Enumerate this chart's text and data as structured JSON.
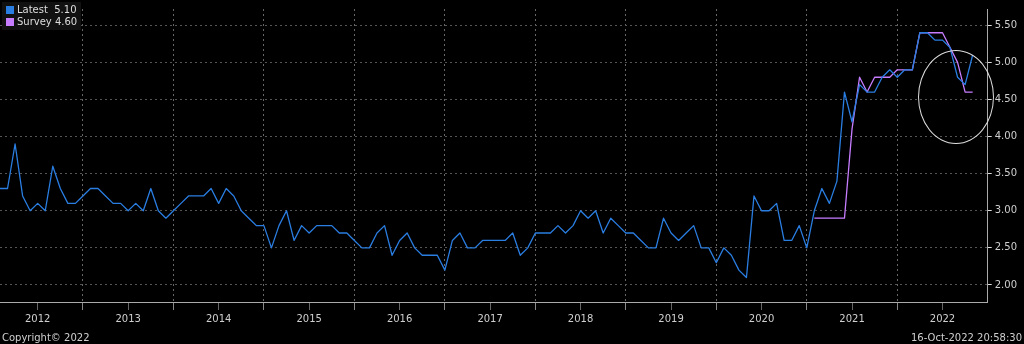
{
  "chart_data": {
    "type": "line",
    "x": [
      "2012-02",
      "2012-03",
      "2012-04",
      "2012-05",
      "2012-06",
      "2012-07",
      "2012-08",
      "2012-09",
      "2012-10",
      "2012-11",
      "2012-12",
      "2013-01",
      "2013-02",
      "2013-03",
      "2013-04",
      "2013-05",
      "2013-06",
      "2013-07",
      "2013-08",
      "2013-09",
      "2013-10",
      "2013-11",
      "2013-12",
      "2014-01",
      "2014-02",
      "2014-03",
      "2014-04",
      "2014-05",
      "2014-06",
      "2014-07",
      "2014-08",
      "2014-09",
      "2014-10",
      "2014-11",
      "2014-12",
      "2015-01",
      "2015-02",
      "2015-03",
      "2015-04",
      "2015-05",
      "2015-06",
      "2015-07",
      "2015-08",
      "2015-09",
      "2015-10",
      "2015-11",
      "2015-12",
      "2016-01",
      "2016-02",
      "2016-03",
      "2016-04",
      "2016-05",
      "2016-06",
      "2016-07",
      "2016-08",
      "2016-09",
      "2016-10",
      "2016-11",
      "2016-12",
      "2017-01",
      "2017-02",
      "2017-03",
      "2017-04",
      "2017-05",
      "2017-06",
      "2017-07",
      "2017-08",
      "2017-09",
      "2017-10",
      "2017-11",
      "2017-12",
      "2018-01",
      "2018-02",
      "2018-03",
      "2018-04",
      "2018-05",
      "2018-06",
      "2018-07",
      "2018-08",
      "2018-09",
      "2018-10",
      "2018-11",
      "2018-12",
      "2019-01",
      "2019-02",
      "2019-03",
      "2019-04",
      "2019-05",
      "2019-06",
      "2019-07",
      "2019-08",
      "2019-09",
      "2019-10",
      "2019-11",
      "2019-12",
      "2020-01",
      "2020-02",
      "2020-03",
      "2020-04",
      "2020-05",
      "2020-06",
      "2020-07",
      "2020-08",
      "2020-09",
      "2020-10",
      "2020-11",
      "2020-12",
      "2021-01",
      "2021-02",
      "2021-03",
      "2021-04",
      "2021-05",
      "2021-06",
      "2021-07",
      "2021-08",
      "2021-09",
      "2021-10",
      "2021-11",
      "2021-12",
      "2022-01",
      "2022-02",
      "2022-03",
      "2022-04",
      "2022-05",
      "2022-06",
      "2022-07",
      "2022-08",
      "2022-09",
      "2022-10",
      "2022-11"
    ],
    "series": [
      {
        "name": "Latest  5.10",
        "color": "#2a7de1",
        "values": [
          3.3,
          3.3,
          3.9,
          3.2,
          3.0,
          3.1,
          3.0,
          3.6,
          3.3,
          3.1,
          3.1,
          3.2,
          3.3,
          3.3,
          3.2,
          3.1,
          3.1,
          3.0,
          3.1,
          3.0,
          3.3,
          3.0,
          2.9,
          3.0,
          3.1,
          3.2,
          3.2,
          3.2,
          3.3,
          3.1,
          3.3,
          3.2,
          3.0,
          2.9,
          2.8,
          2.8,
          2.5,
          2.8,
          3.0,
          2.6,
          2.8,
          2.7,
          2.8,
          2.8,
          2.8,
          2.7,
          2.7,
          2.6,
          2.5,
          2.5,
          2.7,
          2.8,
          2.4,
          2.6,
          2.7,
          2.5,
          2.4,
          2.4,
          2.4,
          2.2,
          2.6,
          2.7,
          2.5,
          2.5,
          2.6,
          2.6,
          2.6,
          2.6,
          2.7,
          2.4,
          2.5,
          2.7,
          2.7,
          2.7,
          2.8,
          2.7,
          2.8,
          3.0,
          2.9,
          3.0,
          2.7,
          2.9,
          2.8,
          2.7,
          2.7,
          2.6,
          2.5,
          2.5,
          2.9,
          2.7,
          2.6,
          2.7,
          2.8,
          2.5,
          2.5,
          2.3,
          2.5,
          2.4,
          2.2,
          2.1,
          3.2,
          3.0,
          3.0,
          3.1,
          2.6,
          2.6,
          2.8,
          2.5,
          3.0,
          3.3,
          3.1,
          3.4,
          4.6,
          4.2,
          4.7,
          4.6,
          4.6,
          4.8,
          4.9,
          4.8,
          4.9,
          4.9,
          5.4,
          5.4,
          5.3,
          5.3,
          5.2,
          4.8,
          4.7,
          5.1
        ]
      },
      {
        "name": "Survey 4.60",
        "color": "#c77dff",
        "x": [
          "2021-02",
          "2021-03",
          "2021-04",
          "2021-05",
          "2021-06",
          "2021-07",
          "2021-08",
          "2021-09",
          "2021-10",
          "2021-11",
          "2021-12",
          "2022-01",
          "2022-02",
          "2022-03",
          "2022-04",
          "2022-05",
          "2022-06",
          "2022-07",
          "2022-08",
          "2022-09",
          "2022-10",
          "2022-11"
        ],
        "values": [
          2.9,
          2.9,
          2.9,
          2.9,
          2.9,
          4.1,
          4.8,
          4.6,
          4.8,
          4.8,
          4.8,
          4.9,
          4.9,
          4.9,
          5.4,
          5.4,
          5.4,
          5.4,
          5.2,
          5.0,
          4.6,
          4.6
        ]
      }
    ],
    "xlim": [
      "2012-02",
      "2023-01"
    ],
    "xticks": [
      {
        "value": "2012-07",
        "label": "2012"
      },
      {
        "value": "2013-01",
        "label": null
      },
      {
        "value": "2013-07",
        "label": "2013"
      },
      {
        "value": "2014-01",
        "label": null
      },
      {
        "value": "2014-07",
        "label": "2014"
      },
      {
        "value": "2015-01",
        "label": null
      },
      {
        "value": "2015-07",
        "label": "2015"
      },
      {
        "value": "2016-01",
        "label": null
      },
      {
        "value": "2016-07",
        "label": "2016"
      },
      {
        "value": "2017-01",
        "label": null
      },
      {
        "value": "2017-07",
        "label": "2017"
      },
      {
        "value": "2018-01",
        "label": null
      },
      {
        "value": "2018-07",
        "label": "2018"
      },
      {
        "value": "2019-01",
        "label": null
      },
      {
        "value": "2019-07",
        "label": "2019"
      },
      {
        "value": "2020-01",
        "label": null
      },
      {
        "value": "2020-07",
        "label": "2020"
      },
      {
        "value": "2021-01",
        "label": null
      },
      {
        "value": "2021-07",
        "label": "2021"
      },
      {
        "value": "2022-01",
        "label": null
      },
      {
        "value": "2022-07",
        "label": "2022"
      }
    ],
    "ylim": [
      1.77,
      5.72
    ],
    "yticks": [
      {
        "value": 2,
        "label": "2.00"
      },
      {
        "value": 2.5,
        "label": "2.50"
      },
      {
        "value": 3,
        "label": "3.00"
      },
      {
        "value": 3.5,
        "label": "3.50"
      },
      {
        "value": 4,
        "label": "4.00"
      },
      {
        "value": 4.5,
        "label": "4.50"
      },
      {
        "value": 5,
        "label": "5.00"
      },
      {
        "value": 5.5,
        "label": "5.50"
      }
    ],
    "grid": true,
    "legend": "top left",
    "marker": "none",
    "line_style": "solid",
    "annotations": [
      "Copyright© 2022",
      "16-Oct-2022 20:58:30"
    ]
  }
}
